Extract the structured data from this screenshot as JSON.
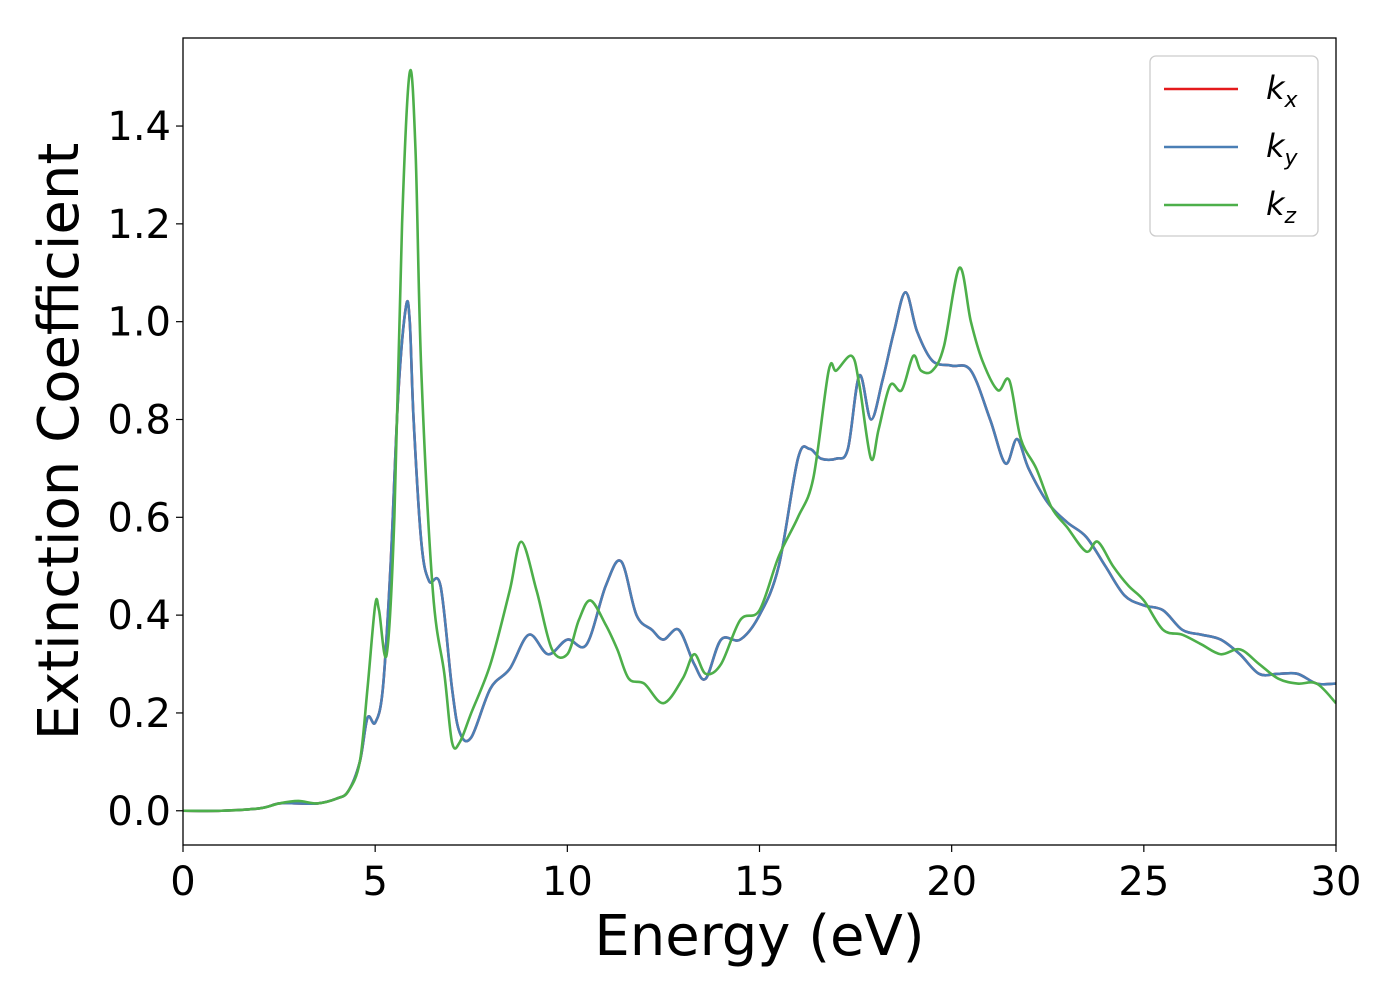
{
  "chart_data": {
    "type": "line",
    "title": "",
    "xlabel": "Energy (eV)",
    "ylabel": "Extinction Coefficient",
    "xlim": [
      0,
      30
    ],
    "ylim": [
      -0.07,
      1.58
    ],
    "xticks": [
      0,
      5,
      10,
      15,
      20,
      25,
      30
    ],
    "xtick_labels": [
      "0",
      "5",
      "10",
      "15",
      "20",
      "25",
      "30"
    ],
    "yticks": [
      0.0,
      0.2,
      0.4,
      0.6,
      0.8,
      1.0,
      1.2,
      1.4
    ],
    "ytick_labels": [
      "0.0",
      "0.2",
      "0.4",
      "0.6",
      "0.8",
      "1.0",
      "1.2",
      "1.4"
    ],
    "grid": false,
    "legend_position": "top-right",
    "series": [
      {
        "name": "k_x",
        "label_base": "k",
        "label_sub": "x",
        "color": "#e41a1c",
        "x": [
          0,
          1,
          2,
          2.5,
          3,
          3.5,
          4,
          4.3,
          4.6,
          4.8,
          5.0,
          5.2,
          5.4,
          5.6,
          5.8,
          5.9,
          6.0,
          6.2,
          6.4,
          6.7,
          7.0,
          7.2,
          7.5,
          8.0,
          8.5,
          9.0,
          9.5,
          10.0,
          10.5,
          11.0,
          11.4,
          11.8,
          12.2,
          12.5,
          12.9,
          13.3,
          13.6,
          14.0,
          14.5,
          15.0,
          15.5,
          16.0,
          16.3,
          16.6,
          17.0,
          17.3,
          17.6,
          17.9,
          18.2,
          18.5,
          18.8,
          19.1,
          19.5,
          20.0,
          20.5,
          21.0,
          21.4,
          21.7,
          22.0,
          22.5,
          23.0,
          23.5,
          24.0,
          24.5,
          25.0,
          25.5,
          26.0,
          26.5,
          27.0,
          27.5,
          28.0,
          28.5,
          29.0,
          29.5,
          30.0
        ],
        "y": [
          0.0,
          0.0,
          0.005,
          0.015,
          0.015,
          0.015,
          0.025,
          0.04,
          0.1,
          0.19,
          0.18,
          0.25,
          0.5,
          0.85,
          1.03,
          1.0,
          0.8,
          0.55,
          0.47,
          0.46,
          0.25,
          0.16,
          0.15,
          0.25,
          0.29,
          0.36,
          0.32,
          0.35,
          0.34,
          0.46,
          0.51,
          0.4,
          0.37,
          0.35,
          0.37,
          0.3,
          0.27,
          0.35,
          0.35,
          0.4,
          0.5,
          0.72,
          0.74,
          0.72,
          0.72,
          0.74,
          0.89,
          0.8,
          0.88,
          0.98,
          1.06,
          0.98,
          0.92,
          0.91,
          0.9,
          0.8,
          0.71,
          0.76,
          0.7,
          0.63,
          0.59,
          0.56,
          0.5,
          0.44,
          0.42,
          0.41,
          0.37,
          0.36,
          0.35,
          0.32,
          0.28,
          0.28,
          0.28,
          0.26,
          0.26
        ]
      },
      {
        "name": "k_y",
        "label_base": "k",
        "label_sub": "y",
        "color": "#4a7fb5",
        "x": [
          0,
          1,
          2,
          2.5,
          3,
          3.5,
          4,
          4.3,
          4.6,
          4.8,
          5.0,
          5.2,
          5.4,
          5.6,
          5.8,
          5.9,
          6.0,
          6.2,
          6.4,
          6.7,
          7.0,
          7.2,
          7.5,
          8.0,
          8.5,
          9.0,
          9.5,
          10.0,
          10.5,
          11.0,
          11.4,
          11.8,
          12.2,
          12.5,
          12.9,
          13.3,
          13.6,
          14.0,
          14.5,
          15.0,
          15.5,
          16.0,
          16.3,
          16.6,
          17.0,
          17.3,
          17.6,
          17.9,
          18.2,
          18.5,
          18.8,
          19.1,
          19.5,
          20.0,
          20.5,
          21.0,
          21.4,
          21.7,
          22.0,
          22.5,
          23.0,
          23.5,
          24.0,
          24.5,
          25.0,
          25.5,
          26.0,
          26.5,
          27.0,
          27.5,
          28.0,
          28.5,
          29.0,
          29.5,
          30.0
        ],
        "y": [
          0.0,
          0.0,
          0.005,
          0.015,
          0.015,
          0.015,
          0.025,
          0.04,
          0.1,
          0.19,
          0.18,
          0.25,
          0.5,
          0.85,
          1.03,
          1.0,
          0.8,
          0.55,
          0.47,
          0.46,
          0.25,
          0.16,
          0.15,
          0.25,
          0.29,
          0.36,
          0.32,
          0.35,
          0.34,
          0.46,
          0.51,
          0.4,
          0.37,
          0.35,
          0.37,
          0.3,
          0.27,
          0.35,
          0.35,
          0.4,
          0.5,
          0.72,
          0.74,
          0.72,
          0.72,
          0.74,
          0.89,
          0.8,
          0.88,
          0.98,
          1.06,
          0.98,
          0.92,
          0.91,
          0.9,
          0.8,
          0.71,
          0.76,
          0.7,
          0.63,
          0.59,
          0.56,
          0.5,
          0.44,
          0.42,
          0.41,
          0.37,
          0.36,
          0.35,
          0.32,
          0.28,
          0.28,
          0.28,
          0.26,
          0.26
        ]
      },
      {
        "name": "k_z",
        "label_base": "k",
        "label_sub": "z",
        "color": "#4daf4a",
        "x": [
          0,
          1,
          2,
          2.5,
          3,
          3.5,
          4,
          4.3,
          4.6,
          4.8,
          5.0,
          5.1,
          5.3,
          5.5,
          5.7,
          5.9,
          6.05,
          6.2,
          6.5,
          6.8,
          7.0,
          7.2,
          7.5,
          8.0,
          8.5,
          8.8,
          9.2,
          9.6,
          10.0,
          10.3,
          10.6,
          11.0,
          11.3,
          11.6,
          12.0,
          12.5,
          13.0,
          13.3,
          13.6,
          14.0,
          14.5,
          15.0,
          15.5,
          16.0,
          16.4,
          16.8,
          17.0,
          17.4,
          17.6,
          17.9,
          18.1,
          18.4,
          18.7,
          19.0,
          19.2,
          19.5,
          19.8,
          20.2,
          20.5,
          20.8,
          21.2,
          21.5,
          21.8,
          22.2,
          22.6,
          23.0,
          23.5,
          23.8,
          24.2,
          24.6,
          25.0,
          25.5,
          26.0,
          26.5,
          27.0,
          27.5,
          28.0,
          28.5,
          29.0,
          29.5,
          30.0
        ],
        "y": [
          0.0,
          0.0,
          0.005,
          0.015,
          0.02,
          0.015,
          0.025,
          0.04,
          0.1,
          0.25,
          0.42,
          0.41,
          0.32,
          0.6,
          1.2,
          1.51,
          1.35,
          0.9,
          0.45,
          0.28,
          0.14,
          0.14,
          0.2,
          0.3,
          0.45,
          0.55,
          0.45,
          0.33,
          0.32,
          0.39,
          0.43,
          0.38,
          0.33,
          0.27,
          0.26,
          0.22,
          0.27,
          0.32,
          0.28,
          0.3,
          0.39,
          0.41,
          0.52,
          0.6,
          0.68,
          0.9,
          0.9,
          0.93,
          0.87,
          0.72,
          0.78,
          0.87,
          0.86,
          0.93,
          0.9,
          0.9,
          0.95,
          1.11,
          1.0,
          0.92,
          0.86,
          0.88,
          0.76,
          0.7,
          0.62,
          0.58,
          0.53,
          0.55,
          0.5,
          0.46,
          0.43,
          0.37,
          0.36,
          0.34,
          0.32,
          0.33,
          0.3,
          0.27,
          0.26,
          0.26,
          0.22
        ]
      }
    ]
  }
}
